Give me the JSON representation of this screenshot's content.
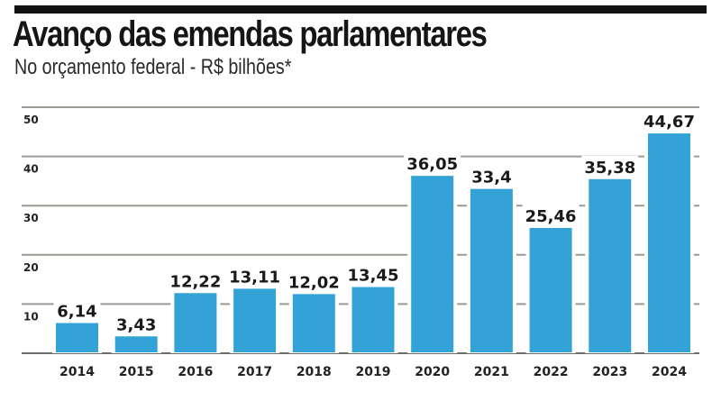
{
  "header": {
    "title": "Avanço das emendas parlamentares",
    "subtitle": "No orçamento federal - R$ bilhões*"
  },
  "colors": {
    "bar": "#33a2d6",
    "grid": "#9a9a94",
    "rule": "#111111"
  },
  "chart_data": {
    "type": "bar",
    "title": "Avanço das emendas parlamentares",
    "subtitle": "No orçamento federal - R$ bilhões*",
    "xlabel": "",
    "ylabel": "",
    "categories": [
      "2014",
      "2015",
      "2016",
      "2017",
      "2018",
      "2019",
      "2020",
      "2021",
      "2022",
      "2023",
      "2024"
    ],
    "values": [
      6.14,
      3.43,
      12.22,
      13.11,
      12.02,
      13.45,
      36.05,
      33.4,
      25.46,
      35.38,
      44.67
    ],
    "value_labels": [
      "6,14",
      "3,43",
      "12,22",
      "13,11",
      "12,02",
      "13,45",
      "36,05",
      "33,4",
      "25,46",
      "35,38",
      "44,67"
    ],
    "ylim": [
      0,
      50
    ],
    "yticks": [
      10,
      20,
      30,
      40,
      50
    ],
    "ytick_labels": [
      "10",
      "20",
      "30",
      "40",
      "50"
    ],
    "grid": true,
    "legend": "none"
  }
}
